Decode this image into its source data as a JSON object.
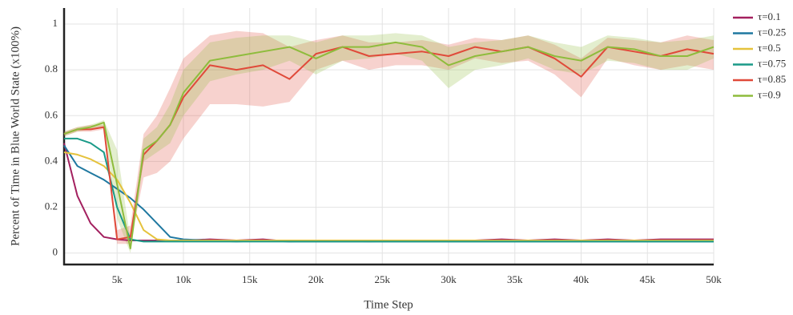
{
  "chart_data": {
    "type": "line",
    "xlabel": "Time Step",
    "ylabel": "Percent of Time in Blue World State (x100%)",
    "x": [
      1000,
      2000,
      3000,
      4000,
      5000,
      6000,
      7000,
      8000,
      9000,
      10000,
      12000,
      14000,
      16000,
      18000,
      20000,
      22000,
      24000,
      26000,
      28000,
      30000,
      32000,
      34000,
      36000,
      38000,
      40000,
      42000,
      44000,
      46000,
      48000,
      50000
    ],
    "xlim": [
      1000,
      50000
    ],
    "xticks": [
      {
        "value": 5000,
        "label": "5k"
      },
      {
        "value": 10000,
        "label": "10k"
      },
      {
        "value": 15000,
        "label": "15k"
      },
      {
        "value": 20000,
        "label": "20k"
      },
      {
        "value": 25000,
        "label": "25k"
      },
      {
        "value": 30000,
        "label": "30k"
      },
      {
        "value": 35000,
        "label": "35k"
      },
      {
        "value": 40000,
        "label": "40k"
      },
      {
        "value": 45000,
        "label": "45k"
      },
      {
        "value": 50000,
        "label": "50k"
      }
    ],
    "ylim": [
      -0.05,
      1.07
    ],
    "yticks": [
      0,
      0.2,
      0.4,
      0.6,
      0.8,
      1
    ],
    "grid": true,
    "legend": "right",
    "series": [
      {
        "name": "τ=0.1",
        "color": "#a3205f",
        "values": [
          0.48,
          0.25,
          0.13,
          0.07,
          0.06,
          0.055,
          0.055,
          0.055,
          0.055,
          0.055,
          0.06,
          0.055,
          0.06,
          0.05,
          0.055,
          0.055,
          0.05,
          0.055,
          0.055,
          0.055,
          0.055,
          0.06,
          0.055,
          0.06,
          0.055,
          0.06,
          0.055,
          0.06,
          0.06,
          0.06
        ]
      },
      {
        "name": "τ=0.25",
        "color": "#1f78a0",
        "values": [
          0.47,
          0.38,
          0.35,
          0.32,
          0.28,
          0.24,
          0.19,
          0.13,
          0.07,
          0.06,
          0.055,
          0.05,
          0.055,
          0.05,
          0.05,
          0.05,
          0.05,
          0.05,
          0.05,
          0.05,
          0.05,
          0.05,
          0.05,
          0.05,
          0.05,
          0.05,
          0.05,
          0.05,
          0.05,
          0.05
        ]
      },
      {
        "name": "τ=0.5",
        "color": "#e5c23c",
        "values": [
          0.44,
          0.43,
          0.41,
          0.38,
          0.32,
          0.22,
          0.1,
          0.06,
          0.055,
          0.055,
          0.055,
          0.055,
          0.055,
          0.055,
          0.055,
          0.055,
          0.055,
          0.055,
          0.055,
          0.055,
          0.055,
          0.055,
          0.055,
          0.055,
          0.055,
          0.055,
          0.055,
          0.055,
          0.055,
          0.055
        ]
      },
      {
        "name": "τ=0.75",
        "color": "#1a9a88",
        "values": [
          0.5,
          0.5,
          0.48,
          0.44,
          0.2,
          0.06,
          0.05,
          0.05,
          0.05,
          0.05,
          0.05,
          0.05,
          0.05,
          0.05,
          0.05,
          0.05,
          0.05,
          0.05,
          0.05,
          0.05,
          0.05,
          0.05,
          0.05,
          0.05,
          0.05,
          0.05,
          0.05,
          0.05,
          0.05,
          0.05
        ]
      },
      {
        "name": "τ=0.85",
        "color": "#e04a3a",
        "values": [
          0.52,
          0.54,
          0.54,
          0.55,
          0.06,
          0.07,
          0.43,
          0.49,
          0.56,
          0.68,
          0.82,
          0.8,
          0.82,
          0.76,
          0.87,
          0.9,
          0.86,
          0.87,
          0.88,
          0.86,
          0.9,
          0.88,
          0.9,
          0.85,
          0.77,
          0.9,
          0.88,
          0.86,
          0.89,
          0.87
        ],
        "band_lower": [
          0.51,
          0.53,
          0.53,
          0.54,
          0.04,
          0.04,
          0.33,
          0.35,
          0.4,
          0.5,
          0.65,
          0.65,
          0.64,
          0.66,
          0.8,
          0.84,
          0.8,
          0.82,
          0.82,
          0.8,
          0.85,
          0.83,
          0.84,
          0.78,
          0.68,
          0.85,
          0.82,
          0.8,
          0.82,
          0.8
        ],
        "band_upper": [
          0.53,
          0.55,
          0.56,
          0.56,
          0.1,
          0.12,
          0.52,
          0.6,
          0.72,
          0.85,
          0.95,
          0.97,
          0.96,
          0.9,
          0.93,
          0.95,
          0.92,
          0.92,
          0.93,
          0.91,
          0.94,
          0.93,
          0.95,
          0.91,
          0.85,
          0.94,
          0.93,
          0.92,
          0.95,
          0.93
        ]
      },
      {
        "name": "τ=0.9",
        "color": "#8ebc3c",
        "values": [
          0.52,
          0.54,
          0.55,
          0.57,
          0.3,
          0.02,
          0.45,
          0.49,
          0.56,
          0.7,
          0.84,
          0.86,
          0.88,
          0.9,
          0.85,
          0.9,
          0.9,
          0.92,
          0.9,
          0.82,
          0.86,
          0.88,
          0.9,
          0.86,
          0.84,
          0.9,
          0.89,
          0.86,
          0.86,
          0.9
        ],
        "band_lower": [
          0.51,
          0.53,
          0.54,
          0.55,
          0.15,
          0,
          0.4,
          0.44,
          0.48,
          0.6,
          0.75,
          0.78,
          0.8,
          0.84,
          0.78,
          0.84,
          0.85,
          0.87,
          0.84,
          0.72,
          0.8,
          0.82,
          0.85,
          0.8,
          0.78,
          0.84,
          0.83,
          0.8,
          0.8,
          0.85
        ],
        "band_upper": [
          0.53,
          0.55,
          0.56,
          0.58,
          0.45,
          0.06,
          0.5,
          0.55,
          0.65,
          0.8,
          0.92,
          0.94,
          0.95,
          0.95,
          0.92,
          0.95,
          0.95,
          0.96,
          0.95,
          0.9,
          0.92,
          0.93,
          0.95,
          0.92,
          0.9,
          0.95,
          0.94,
          0.92,
          0.93,
          0.95
        ]
      }
    ]
  }
}
